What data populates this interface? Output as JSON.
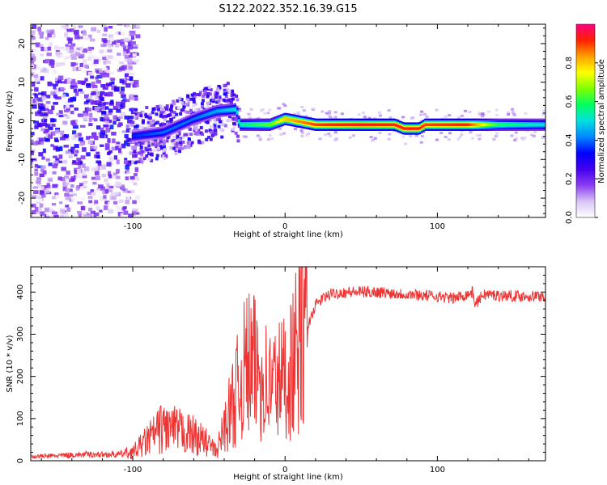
{
  "figure_title": "S122.2022.352.16.39.G15",
  "colors": {
    "snr_line": "#ee3333",
    "axis": "#000000",
    "colormap": [
      "#ffffff",
      "#d9c4f5",
      "#8a3cf0",
      "#4400ee",
      "#0000ff",
      "#0088ff",
      "#00e0e0",
      "#00ff60",
      "#80ff00",
      "#ffff00",
      "#ffa000",
      "#ff2000",
      "#ff0080"
    ]
  },
  "chart_data": [
    {
      "type": "heatmap",
      "title": "",
      "xlabel": "Height of straight line (km)",
      "ylabel": "Frequency (Hz)",
      "xlim": [
        -167,
        171
      ],
      "ylim": [
        -25,
        25
      ],
      "xticks": [
        -100,
        0,
        100
      ],
      "xtick_labels": [
        "-100",
        "0",
        "100"
      ],
      "yticks": [
        -20,
        -10,
        0,
        10,
        20
      ],
      "ytick_labels": [
        "-20",
        "-10",
        "0",
        "10",
        "20"
      ],
      "colorbar": {
        "label": "Normalized spectral amplitude",
        "range": [
          0,
          1
        ],
        "ticks": [
          0.0,
          0.2,
          0.4,
          0.6,
          0.8
        ],
        "tick_labels": [
          "0.0",
          "0.2",
          "0.4",
          "0.6",
          "0.8"
        ]
      },
      "ridge": [
        {
          "x": -100,
          "freq": -4.0,
          "amp": 0.35
        },
        {
          "x": -80,
          "freq": -3.0,
          "amp": 0.4
        },
        {
          "x": -60,
          "freq": 0.5,
          "amp": 0.4
        },
        {
          "x": -45,
          "freq": 2.5,
          "amp": 0.45
        },
        {
          "x": -32,
          "freq": 3.0,
          "amp": 0.5
        },
        {
          "x": -30,
          "freq": -1.0,
          "amp": 0.55
        },
        {
          "x": -10,
          "freq": -1.0,
          "amp": 0.65
        },
        {
          "x": 0,
          "freq": 0.5,
          "amp": 0.8
        },
        {
          "x": 20,
          "freq": -1.0,
          "amp": 0.9
        },
        {
          "x": 50,
          "freq": -1.0,
          "amp": 0.95
        },
        {
          "x": 72,
          "freq": -1.0,
          "amp": 0.92
        },
        {
          "x": 78,
          "freq": -2.0,
          "amp": 0.92
        },
        {
          "x": 88,
          "freq": -2.0,
          "amp": 0.92
        },
        {
          "x": 92,
          "freq": -1.0,
          "amp": 0.9
        },
        {
          "x": 120,
          "freq": -1.0,
          "amp": 0.92
        },
        {
          "x": 140,
          "freq": -1.0,
          "amp": 0.6
        },
        {
          "x": 171,
          "freq": -1.0,
          "amp": 0.5
        }
      ]
    },
    {
      "type": "line",
      "title": "",
      "xlabel": "Height of straight line (km)",
      "ylabel": "SNR (10 * v/v)",
      "xlim": [
        -167,
        171
      ],
      "ylim": [
        0,
        460
      ],
      "xticks": [
        -100,
        0,
        100
      ],
      "xtick_labels": [
        "-100",
        "0",
        "100"
      ],
      "yticks": [
        0,
        100,
        200,
        300,
        400
      ],
      "ytick_labels": [
        "0",
        "100",
        "200",
        "300",
        "400"
      ],
      "series": [
        {
          "color": "#ee3333",
          "x": [
            -167,
            -150,
            -130,
            -110,
            -100,
            -90,
            -80,
            -70,
            -60,
            -50,
            -45,
            -40,
            -35,
            -30,
            -25,
            -20,
            -15,
            -10,
            -5,
            0,
            5,
            10,
            15,
            20,
            25,
            30,
            40,
            50,
            60,
            80,
            100,
            110,
            120,
            123,
            125,
            130,
            140,
            160,
            171
          ],
          "y": [
            10,
            12,
            15,
            15,
            20,
            50,
            80,
            70,
            60,
            40,
            20,
            80,
            130,
            180,
            230,
            220,
            200,
            180,
            190,
            200,
            230,
            280,
            320,
            370,
            385,
            395,
            400,
            400,
            400,
            395,
            390,
            385,
            395,
            400,
            370,
            395,
            392,
            390,
            390
          ]
        }
      ]
    }
  ]
}
